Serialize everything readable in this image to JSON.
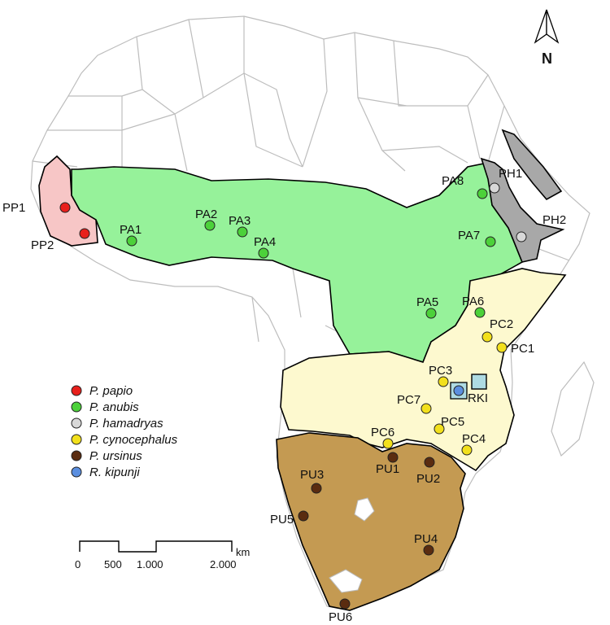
{
  "north_label": "N",
  "colors": {
    "papio": "#e8201c",
    "anubis": "#4cd13a",
    "hamadryas": "#d8d8d8",
    "cynocephalus": "#f2e01c",
    "ursinus": "#5a2c10",
    "kipunji": "#5b8fe0",
    "papio_range": "#f7c6c6",
    "anubis_range": "#96f29a",
    "hamadryas_range": "#a8a8a8",
    "cynocephalus_range": "#fdf9cf",
    "ursinus_range": "#c49a52",
    "kipunji_range": "#aedbe3",
    "borders": "#bdbdbd"
  },
  "legend": {
    "items": [
      {
        "key": "papio",
        "label": "P. papio"
      },
      {
        "key": "anubis",
        "label": "P. anubis"
      },
      {
        "key": "hamadryas",
        "label": "P. hamadryas"
      },
      {
        "key": "cynocephalus",
        "label": "P. cynocephalus"
      },
      {
        "key": "ursinus",
        "label": "P. ursinus"
      },
      {
        "key": "kipunji",
        "label": "R. kipunji"
      }
    ]
  },
  "scale": {
    "unit": "km",
    "ticks": [
      "0",
      "500",
      "1.000",
      "2.000"
    ]
  },
  "sites": [
    {
      "label": "PP1",
      "species": "papio"
    },
    {
      "label": "PP2",
      "species": "papio"
    },
    {
      "label": "PA1",
      "species": "anubis"
    },
    {
      "label": "PA2",
      "species": "anubis"
    },
    {
      "label": "PA3",
      "species": "anubis"
    },
    {
      "label": "PA4",
      "species": "anubis"
    },
    {
      "label": "PA5",
      "species": "anubis"
    },
    {
      "label": "PA6",
      "species": "anubis"
    },
    {
      "label": "PA7",
      "species": "anubis"
    },
    {
      "label": "PA8",
      "species": "anubis"
    },
    {
      "label": "PH1",
      "species": "hamadryas"
    },
    {
      "label": "PH2",
      "species": "hamadryas"
    },
    {
      "label": "PC1",
      "species": "cynocephalus"
    },
    {
      "label": "PC2",
      "species": "cynocephalus"
    },
    {
      "label": "PC3",
      "species": "cynocephalus"
    },
    {
      "label": "PC4",
      "species": "cynocephalus"
    },
    {
      "label": "PC5",
      "species": "cynocephalus"
    },
    {
      "label": "PC6",
      "species": "cynocephalus"
    },
    {
      "label": "PC7",
      "species": "cynocephalus"
    },
    {
      "label": "PU1",
      "species": "ursinus"
    },
    {
      "label": "PU2",
      "species": "ursinus"
    },
    {
      "label": "PU3",
      "species": "ursinus"
    },
    {
      "label": "PU4",
      "species": "ursinus"
    },
    {
      "label": "PU5",
      "species": "ursinus"
    },
    {
      "label": "PU6",
      "species": "ursinus"
    },
    {
      "label": "RKI",
      "species": "kipunji"
    }
  ]
}
